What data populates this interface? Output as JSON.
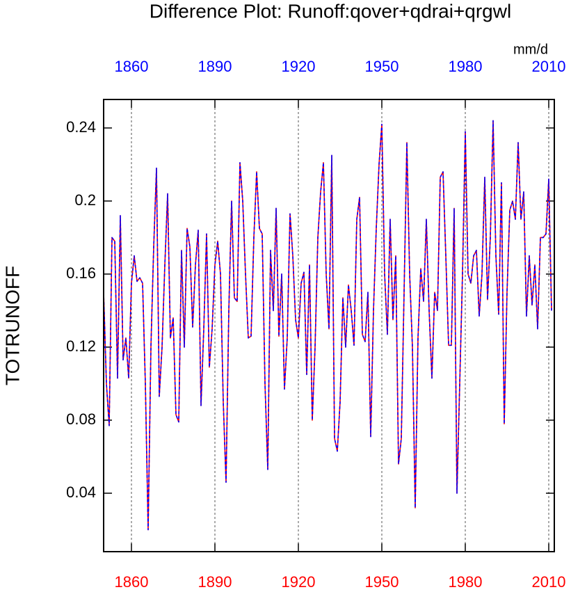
{
  "chart_data": {
    "type": "line",
    "title": "Difference Plot: Runoff:qover+qdrai+qrgwl",
    "unit_label": "mm/d",
    "y_label": "TOTRUNOFF",
    "x": [
      1850,
      1851,
      1852,
      1853,
      1854,
      1855,
      1856,
      1857,
      1858,
      1859,
      1860,
      1861,
      1862,
      1863,
      1864,
      1865,
      1866,
      1867,
      1868,
      1869,
      1870,
      1871,
      1872,
      1873,
      1874,
      1875,
      1876,
      1877,
      1878,
      1879,
      1880,
      1881,
      1882,
      1883,
      1884,
      1885,
      1886,
      1887,
      1888,
      1889,
      1890,
      1891,
      1892,
      1893,
      1894,
      1895,
      1896,
      1897,
      1898,
      1899,
      1900,
      1901,
      1902,
      1903,
      1904,
      1905,
      1906,
      1907,
      1908,
      1909,
      1910,
      1911,
      1912,
      1913,
      1914,
      1915,
      1916,
      1917,
      1918,
      1919,
      1920,
      1921,
      1922,
      1923,
      1924,
      1925,
      1926,
      1927,
      1928,
      1929,
      1930,
      1931,
      1932,
      1933,
      1934,
      1935,
      1936,
      1937,
      1938,
      1939,
      1940,
      1941,
      1942,
      1943,
      1944,
      1945,
      1946,
      1947,
      1948,
      1949,
      1950,
      1951,
      1952,
      1953,
      1954,
      1955,
      1956,
      1957,
      1958,
      1959,
      1960,
      1961,
      1962,
      1963,
      1964,
      1965,
      1966,
      1967,
      1968,
      1969,
      1970,
      1971,
      1972,
      1973,
      1974,
      1975,
      1976,
      1977,
      1978,
      1979,
      1980,
      1981,
      1982,
      1983,
      1984,
      1985,
      1986,
      1987,
      1988,
      1989,
      1990,
      1991,
      1992,
      1993,
      1994,
      1995,
      1996,
      1997,
      1998,
      1999,
      2000,
      2001,
      2002,
      2003,
      2004,
      2005,
      2006,
      2007,
      2008,
      2009,
      2010,
      2011
    ],
    "series": [
      {
        "color": "#ff0000",
        "style": "solid",
        "values": [
          0.15,
          0.1,
          0.077,
          0.18,
          0.178,
          0.103,
          0.192,
          0.113,
          0.125,
          0.103,
          0.155,
          0.17,
          0.156,
          0.158,
          0.155,
          0.1,
          0.02,
          0.12,
          0.175,
          0.218,
          0.093,
          0.12,
          0.165,
          0.204,
          0.125,
          0.136,
          0.083,
          0.079,
          0.173,
          0.12,
          0.185,
          0.175,
          0.131,
          0.165,
          0.184,
          0.088,
          0.13,
          0.182,
          0.109,
          0.13,
          0.165,
          0.178,
          0.16,
          0.09,
          0.046,
          0.14,
          0.2,
          0.147,
          0.145,
          0.221,
          0.2,
          0.16,
          0.125,
          0.126,
          0.18,
          0.216,
          0.185,
          0.182,
          0.1,
          0.053,
          0.173,
          0.14,
          0.196,
          0.126,
          0.16,
          0.097,
          0.125,
          0.193,
          0.17,
          0.135,
          0.125,
          0.155,
          0.161,
          0.105,
          0.165,
          0.08,
          0.12,
          0.18,
          0.205,
          0.221,
          0.16,
          0.13,
          0.225,
          0.07,
          0.063,
          0.09,
          0.147,
          0.12,
          0.154,
          0.14,
          0.121,
          0.19,
          0.202,
          0.127,
          0.123,
          0.15,
          0.071,
          0.14,
          0.185,
          0.22,
          0.242,
          0.16,
          0.127,
          0.19,
          0.135,
          0.17,
          0.056,
          0.07,
          0.15,
          0.232,
          0.16,
          0.12,
          0.032,
          0.125,
          0.163,
          0.145,
          0.19,
          0.14,
          0.103,
          0.15,
          0.14,
          0.213,
          0.216,
          0.17,
          0.121,
          0.121,
          0.196,
          0.04,
          0.1,
          0.16,
          0.238,
          0.16,
          0.155,
          0.17,
          0.173,
          0.137,
          0.16,
          0.213,
          0.146,
          0.18,
          0.244,
          0.17,
          0.138,
          0.21,
          0.078,
          0.15,
          0.195,
          0.2,
          0.19,
          0.232,
          0.19,
          0.205,
          0.137,
          0.17,
          0.143,
          0.165,
          0.13,
          0.18,
          0.18,
          0.182,
          0.212,
          0.14
        ]
      },
      {
        "color": "#0000ff",
        "style": "dashed",
        "values": [
          0.15,
          0.1,
          0.077,
          0.18,
          0.178,
          0.103,
          0.192,
          0.113,
          0.125,
          0.103,
          0.155,
          0.17,
          0.156,
          0.158,
          0.155,
          0.1,
          0.02,
          0.12,
          0.175,
          0.218,
          0.093,
          0.12,
          0.165,
          0.204,
          0.125,
          0.136,
          0.083,
          0.079,
          0.173,
          0.12,
          0.185,
          0.175,
          0.131,
          0.165,
          0.184,
          0.088,
          0.13,
          0.182,
          0.109,
          0.13,
          0.165,
          0.178,
          0.16,
          0.09,
          0.046,
          0.14,
          0.2,
          0.147,
          0.145,
          0.221,
          0.2,
          0.16,
          0.125,
          0.126,
          0.18,
          0.216,
          0.185,
          0.182,
          0.1,
          0.053,
          0.173,
          0.14,
          0.196,
          0.126,
          0.16,
          0.097,
          0.125,
          0.193,
          0.17,
          0.135,
          0.125,
          0.155,
          0.161,
          0.105,
          0.165,
          0.08,
          0.12,
          0.18,
          0.205,
          0.221,
          0.16,
          0.13,
          0.225,
          0.07,
          0.063,
          0.09,
          0.147,
          0.12,
          0.154,
          0.14,
          0.121,
          0.19,
          0.202,
          0.127,
          0.123,
          0.15,
          0.071,
          0.14,
          0.185,
          0.22,
          0.242,
          0.16,
          0.127,
          0.19,
          0.135,
          0.17,
          0.056,
          0.07,
          0.15,
          0.232,
          0.16,
          0.12,
          0.032,
          0.125,
          0.163,
          0.145,
          0.19,
          0.14,
          0.103,
          0.15,
          0.14,
          0.213,
          0.216,
          0.17,
          0.121,
          0.121,
          0.196,
          0.04,
          0.1,
          0.16,
          0.238,
          0.16,
          0.155,
          0.17,
          0.173,
          0.137,
          0.16,
          0.213,
          0.146,
          0.18,
          0.244,
          0.17,
          0.138,
          0.21,
          0.078,
          0.15,
          0.195,
          0.2,
          0.19,
          0.232,
          0.19,
          0.205,
          0.137,
          0.17,
          0.143,
          0.165,
          0.13,
          0.18,
          0.18,
          0.182,
          0.212,
          0.14
        ]
      }
    ],
    "xlim": [
      1850,
      2012
    ],
    "ylim": [
      0.008,
      0.2556
    ],
    "xticks": [
      1860,
      1890,
      1920,
      1950,
      1980,
      2010
    ],
    "x2ticks": [
      1860,
      1890,
      1920,
      1950,
      1980,
      2010
    ],
    "xtick_color": "#ff0000",
    "x2tick_color": "#0000ff",
    "yticks": [
      0.04,
      0.08,
      0.12,
      0.16,
      0.2,
      0.24
    ],
    "xgrid": true
  }
}
